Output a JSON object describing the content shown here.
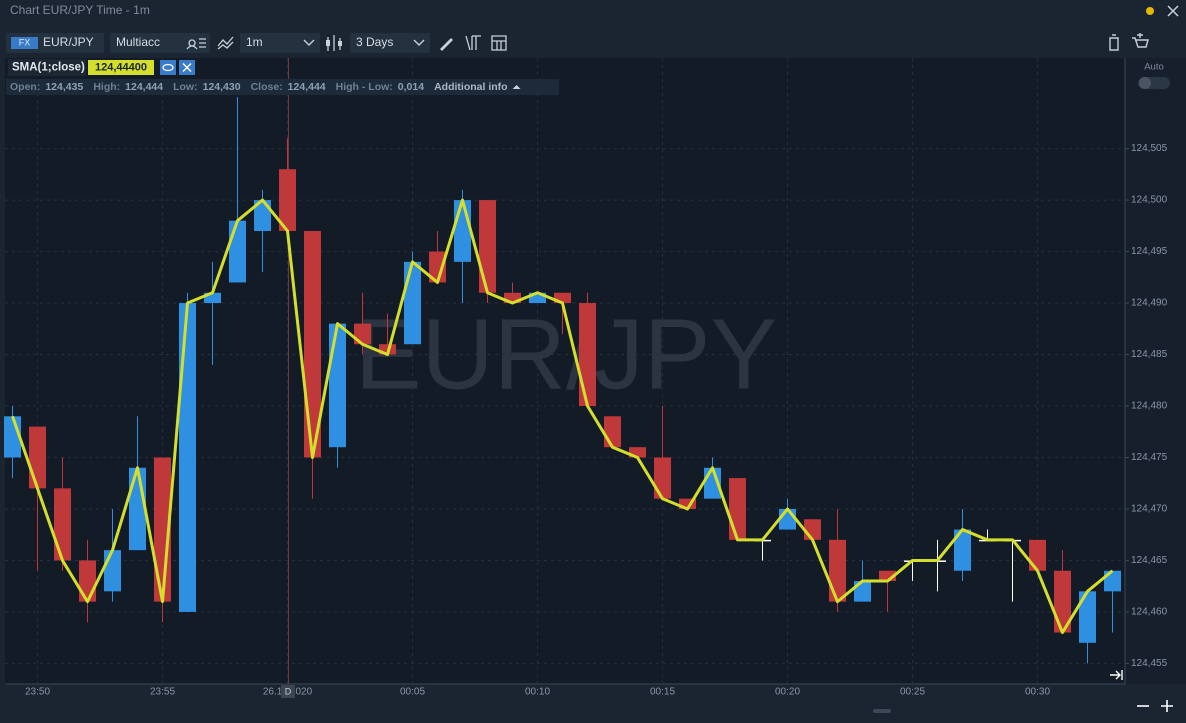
{
  "window": {
    "title": "Chart EUR/JPY Time - 1m"
  },
  "toolbar": {
    "market": "FX",
    "symbol": "EUR/JPY",
    "account": "Multiacc",
    "timeframe": "1m",
    "range": "3 Days"
  },
  "legend": {
    "indicator": "SMA(1;close)",
    "indicator_value": "124,44400",
    "info": [
      {
        "label": "Open:",
        "value": "124,435"
      },
      {
        "label": "High:",
        "value": "124,444"
      },
      {
        "label": "Low:",
        "value": "124,430"
      },
      {
        "label": "Close:",
        "value": "124,444"
      },
      {
        "label": "High - Low:",
        "value": "0,014"
      }
    ],
    "more": "Additional info"
  },
  "watermark": "EUR/JPY",
  "auto_label": "Auto",
  "day_marker": "D",
  "chart_data": {
    "type": "candlestick",
    "categories": [
      null,
      "23:50",
      null,
      null,
      null,
      null,
      "23:55",
      null,
      null,
      null,
      null,
      "26.11.2020",
      null,
      null,
      null,
      null,
      "00:05",
      null,
      null,
      null,
      null,
      "00:10",
      null,
      null,
      null,
      null,
      "00:15",
      null,
      null,
      null,
      null,
      "00:20",
      null,
      null,
      null,
      null,
      "00:25",
      null,
      null,
      null,
      null,
      "00:30",
      null,
      null,
      null
    ],
    "open": [
      124.475,
      124.478,
      124.472,
      124.465,
      124.462,
      124.466,
      124.475,
      124.46,
      124.49,
      124.492,
      124.497,
      124.503,
      124.497,
      124.476,
      124.488,
      124.486,
      124.486,
      124.495,
      124.494,
      124.5,
      124.491,
      124.49,
      124.491,
      124.49,
      124.479,
      124.476,
      124.475,
      124.471,
      124.471,
      124.473,
      124.467,
      124.468,
      124.469,
      124.467,
      124.461,
      124.464,
      124.465,
      124.465,
      124.464,
      124.467,
      124.467,
      124.467,
      124.464,
      124.457,
      124.462
    ],
    "high": [
      124.48,
      124.478,
      124.475,
      124.467,
      124.47,
      124.479,
      124.475,
      124.491,
      124.494,
      124.51,
      124.501,
      124.506,
      124.497,
      124.488,
      124.491,
      124.489,
      124.495,
      124.497,
      124.501,
      124.5,
      124.492,
      124.491,
      124.491,
      124.491,
      124.479,
      124.476,
      124.48,
      124.471,
      124.475,
      124.473,
      124.467,
      124.471,
      124.469,
      124.47,
      124.465,
      124.464,
      124.465,
      124.467,
      124.47,
      124.468,
      124.467,
      124.467,
      124.466,
      124.462,
      124.464
    ],
    "low": [
      124.473,
      124.464,
      124.464,
      124.459,
      124.461,
      124.466,
      124.459,
      124.46,
      124.484,
      124.492,
      124.493,
      124.497,
      124.471,
      124.474,
      124.485,
      124.485,
      124.486,
      124.492,
      124.49,
      124.49,
      124.49,
      124.49,
      124.487,
      124.48,
      124.476,
      124.475,
      124.471,
      124.47,
      124.471,
      124.467,
      124.465,
      124.468,
      124.467,
      124.46,
      124.461,
      124.46,
      124.463,
      124.462,
      124.463,
      124.467,
      124.461,
      124.464,
      124.458,
      124.455,
      124.458
    ],
    "close": [
      124.479,
      124.472,
      124.465,
      124.461,
      124.466,
      124.474,
      124.461,
      124.49,
      124.491,
      124.498,
      124.5,
      124.497,
      124.475,
      124.488,
      124.486,
      124.485,
      124.494,
      124.492,
      124.5,
      124.491,
      124.49,
      124.491,
      124.49,
      124.48,
      124.476,
      124.475,
      124.471,
      124.47,
      124.474,
      124.467,
      124.467,
      124.47,
      124.467,
      124.461,
      124.463,
      124.463,
      124.465,
      124.465,
      124.468,
      124.467,
      124.467,
      124.464,
      124.458,
      124.462,
      124.464
    ],
    "up_color": "#2f8fe0",
    "down_color": "#c0393a",
    "flat_color": "#ffffff",
    "line_color": "#d4df2c",
    "ylim": [
      124.453,
      124.5138
    ],
    "yticks": [
      {
        "value": 124.455,
        "label": "124,455"
      },
      {
        "value": 124.46,
        "label": "124,460"
      },
      {
        "value": 124.465,
        "label": "124,465"
      },
      {
        "value": 124.47,
        "label": "124,470"
      },
      {
        "value": 124.475,
        "label": "124,475"
      },
      {
        "value": 124.48,
        "label": "124,480"
      },
      {
        "value": 124.485,
        "label": "124,485"
      },
      {
        "value": 124.49,
        "label": "124,490"
      },
      {
        "value": 124.495,
        "label": "124,495"
      },
      {
        "value": 124.5,
        "label": "124,500"
      },
      {
        "value": 124.505,
        "label": "124,505"
      }
    ],
    "grid": true
  }
}
